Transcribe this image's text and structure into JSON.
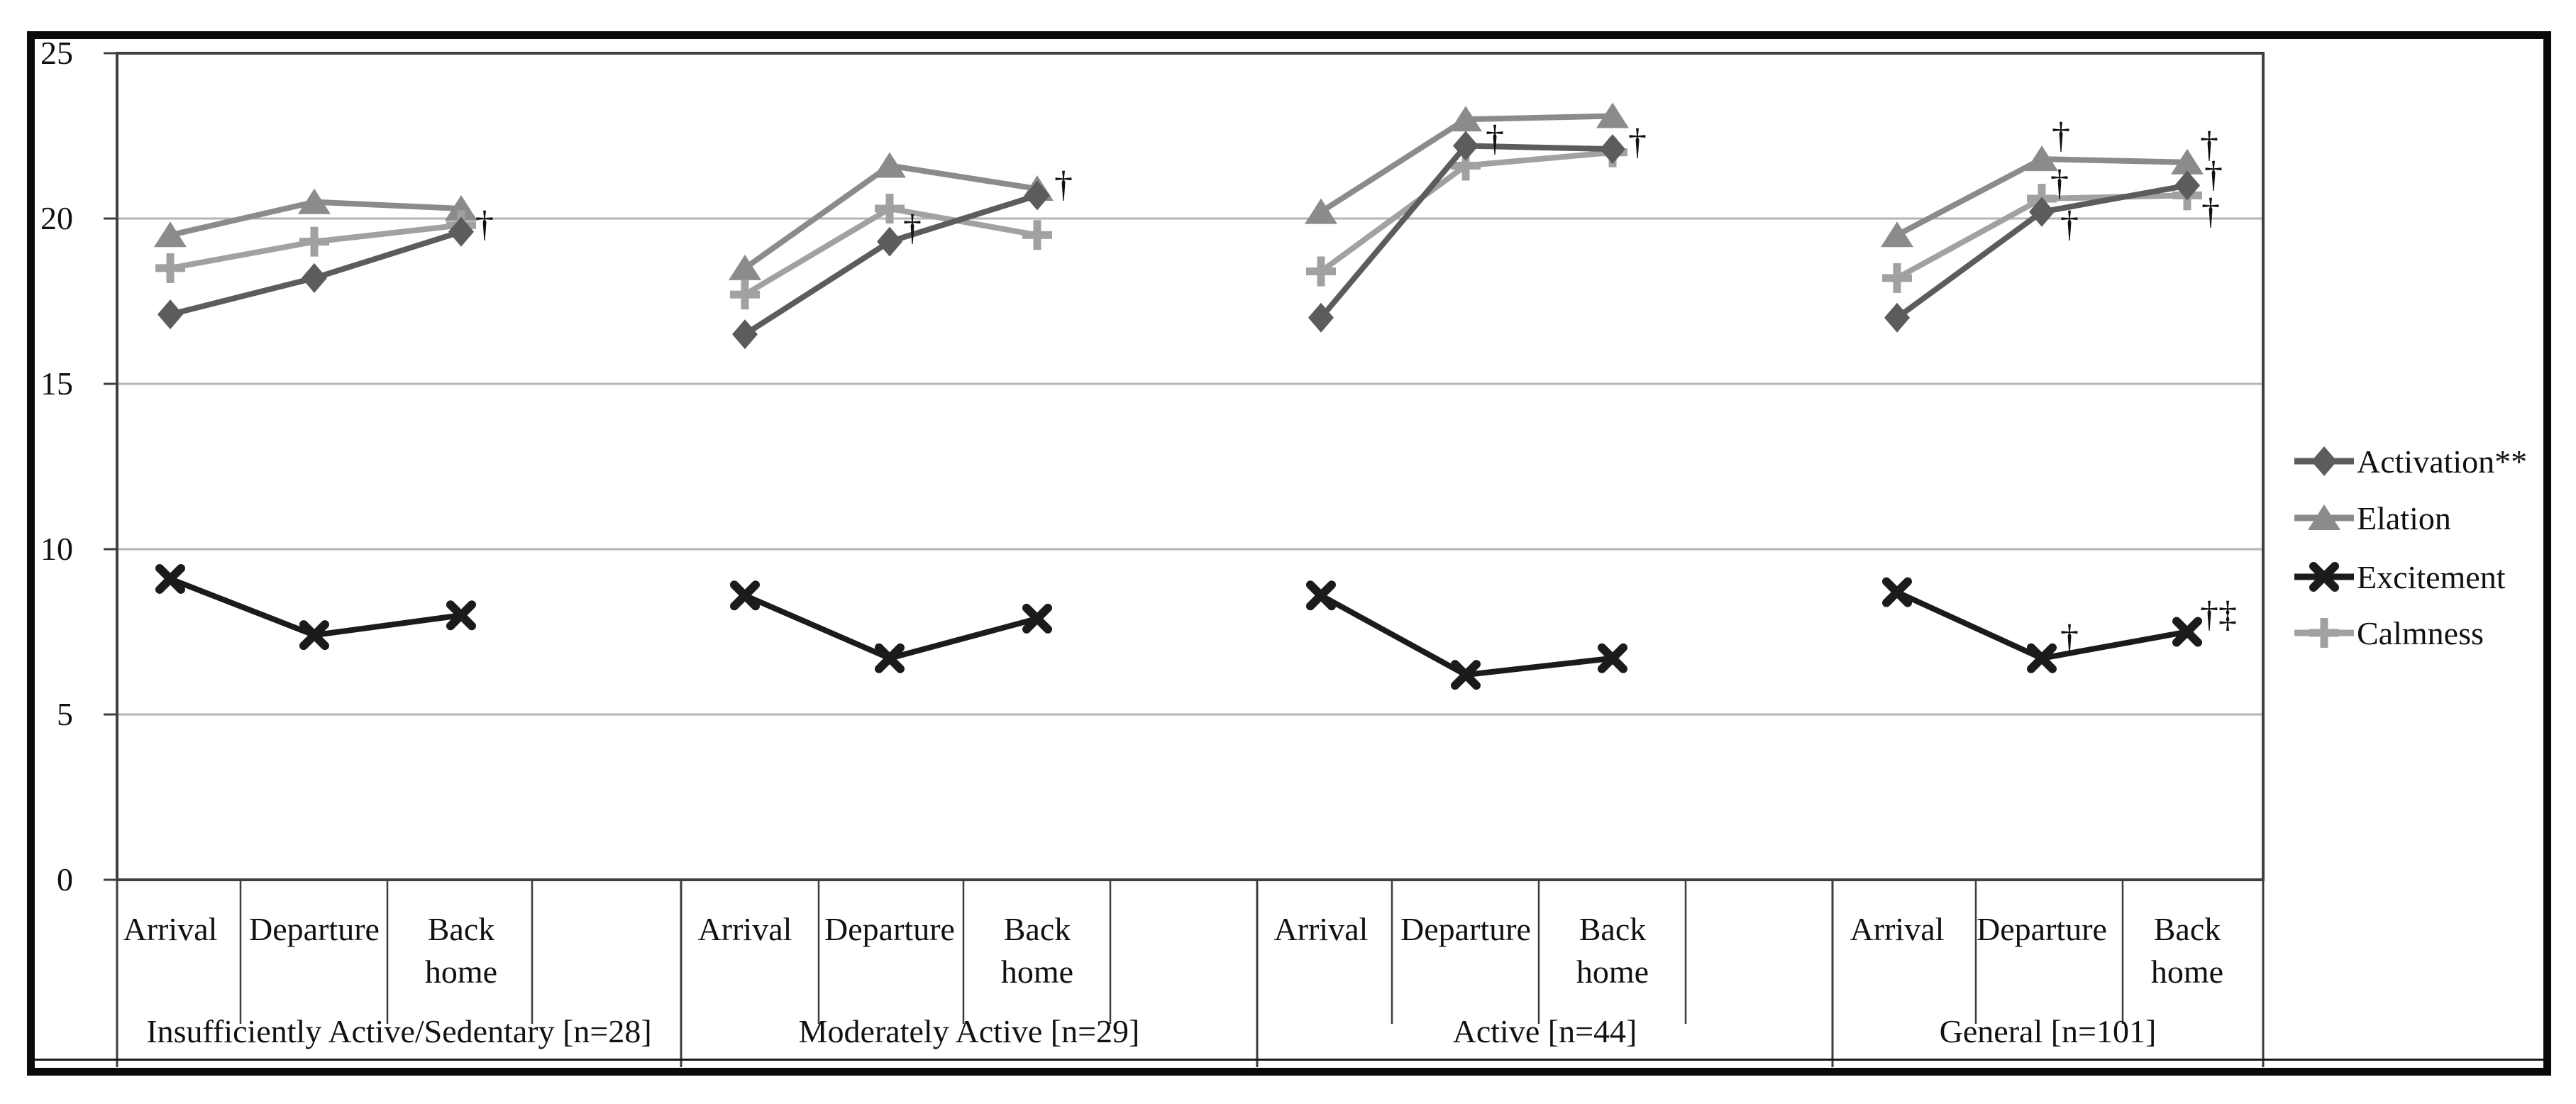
{
  "chart_data": {
    "type": "line",
    "title": "",
    "y_axis": {
      "min": 0,
      "max": 25,
      "tick_step": 5,
      "tick_labels": [
        "0",
        "5",
        "10",
        "15",
        "20",
        "25"
      ],
      "gridlines": [
        5,
        10,
        15,
        20
      ],
      "grid": "on"
    },
    "categories": [
      "Arrival",
      "Departure",
      "Back home"
    ],
    "category_label_lines": [
      [
        "Arrival"
      ],
      [
        "Departure"
      ],
      [
        "Back",
        "home"
      ]
    ],
    "series_meta": {
      "activation": {
        "label": "Activation**",
        "color": "#5c5c5c",
        "marker": "diamond"
      },
      "elation": {
        "label": "Elation",
        "color": "#8b8b8b",
        "marker": "triangle"
      },
      "excitement": {
        "label": "Excitement",
        "color": "#1b1b1b",
        "marker": "x"
      },
      "calmness": {
        "label": "Calmness",
        "color": "#a1a1a1",
        "marker": "plus"
      }
    },
    "draw_order": [
      "elation",
      "calmness",
      "activation",
      "excitement"
    ],
    "legend": {
      "position": "right",
      "order": [
        "activation",
        "elation",
        "excitement",
        "calmness"
      ]
    },
    "groups": [
      {
        "label": "Insufficiently Active/Sedentary [n=28]",
        "series": {
          "activation": [
            17.1,
            18.2,
            19.6
          ],
          "elation": [
            19.5,
            20.5,
            20.3
          ],
          "excitement": [
            9.1,
            7.4,
            8.0
          ],
          "calmness": [
            18.5,
            19.3,
            19.8
          ]
        },
        "annotations": [
          {
            "category": 2,
            "text": "†",
            "value": 19.8,
            "dx": 20
          }
        ]
      },
      {
        "label": "Moderately Active [n=29]",
        "series": {
          "activation": [
            16.5,
            19.3,
            20.7
          ],
          "elation": [
            18.5,
            21.6,
            20.9
          ],
          "excitement": [
            8.6,
            6.7,
            7.9
          ],
          "calmness": [
            17.7,
            20.3,
            19.5
          ]
        },
        "annotations": [
          {
            "category": 1,
            "text": "†",
            "value": 19.7,
            "dx": 19
          },
          {
            "category": 2,
            "text": "†",
            "value": 21.0,
            "dx": 24
          }
        ]
      },
      {
        "label": "Active [n=44]",
        "series": {
          "activation": [
            17.0,
            22.2,
            22.1
          ],
          "elation": [
            20.2,
            23.0,
            23.1
          ],
          "excitement": [
            8.6,
            6.2,
            6.7
          ],
          "calmness": [
            18.4,
            21.6,
            22.0
          ]
        },
        "annotations": [
          {
            "category": 1,
            "text": "†",
            "value": 22.4,
            "dx": 28
          },
          {
            "category": 2,
            "text": "†",
            "value": 22.3,
            "dx": 22
          }
        ]
      },
      {
        "label": "General [n=101]",
        "series": {
          "activation": [
            17.0,
            20.2,
            21.0
          ],
          "elation": [
            19.5,
            21.8,
            21.7
          ],
          "excitement": [
            8.7,
            6.7,
            7.5
          ],
          "calmness": [
            18.2,
            20.6,
            20.7
          ]
        },
        "annotations": [
          {
            "category": 1,
            "text": "†",
            "value": 22.5,
            "dx": 14
          },
          {
            "category": 1,
            "text": "†",
            "value": 21.05,
            "dx": 12
          },
          {
            "category": 1,
            "text": "†",
            "value": 19.8,
            "dx": 26
          },
          {
            "category": 1,
            "text": "†",
            "value": 7.3,
            "dx": 26
          },
          {
            "category": 2,
            "text": "†",
            "value": 22.2,
            "dx": 18
          },
          {
            "category": 2,
            "text": "†",
            "value": 21.3,
            "dx": 24
          },
          {
            "category": 2,
            "text": "†",
            "value": 20.2,
            "dx": 20
          },
          {
            "category": 2,
            "text": "†‡",
            "value": 8.0,
            "dx": 18
          }
        ]
      }
    ]
  }
}
